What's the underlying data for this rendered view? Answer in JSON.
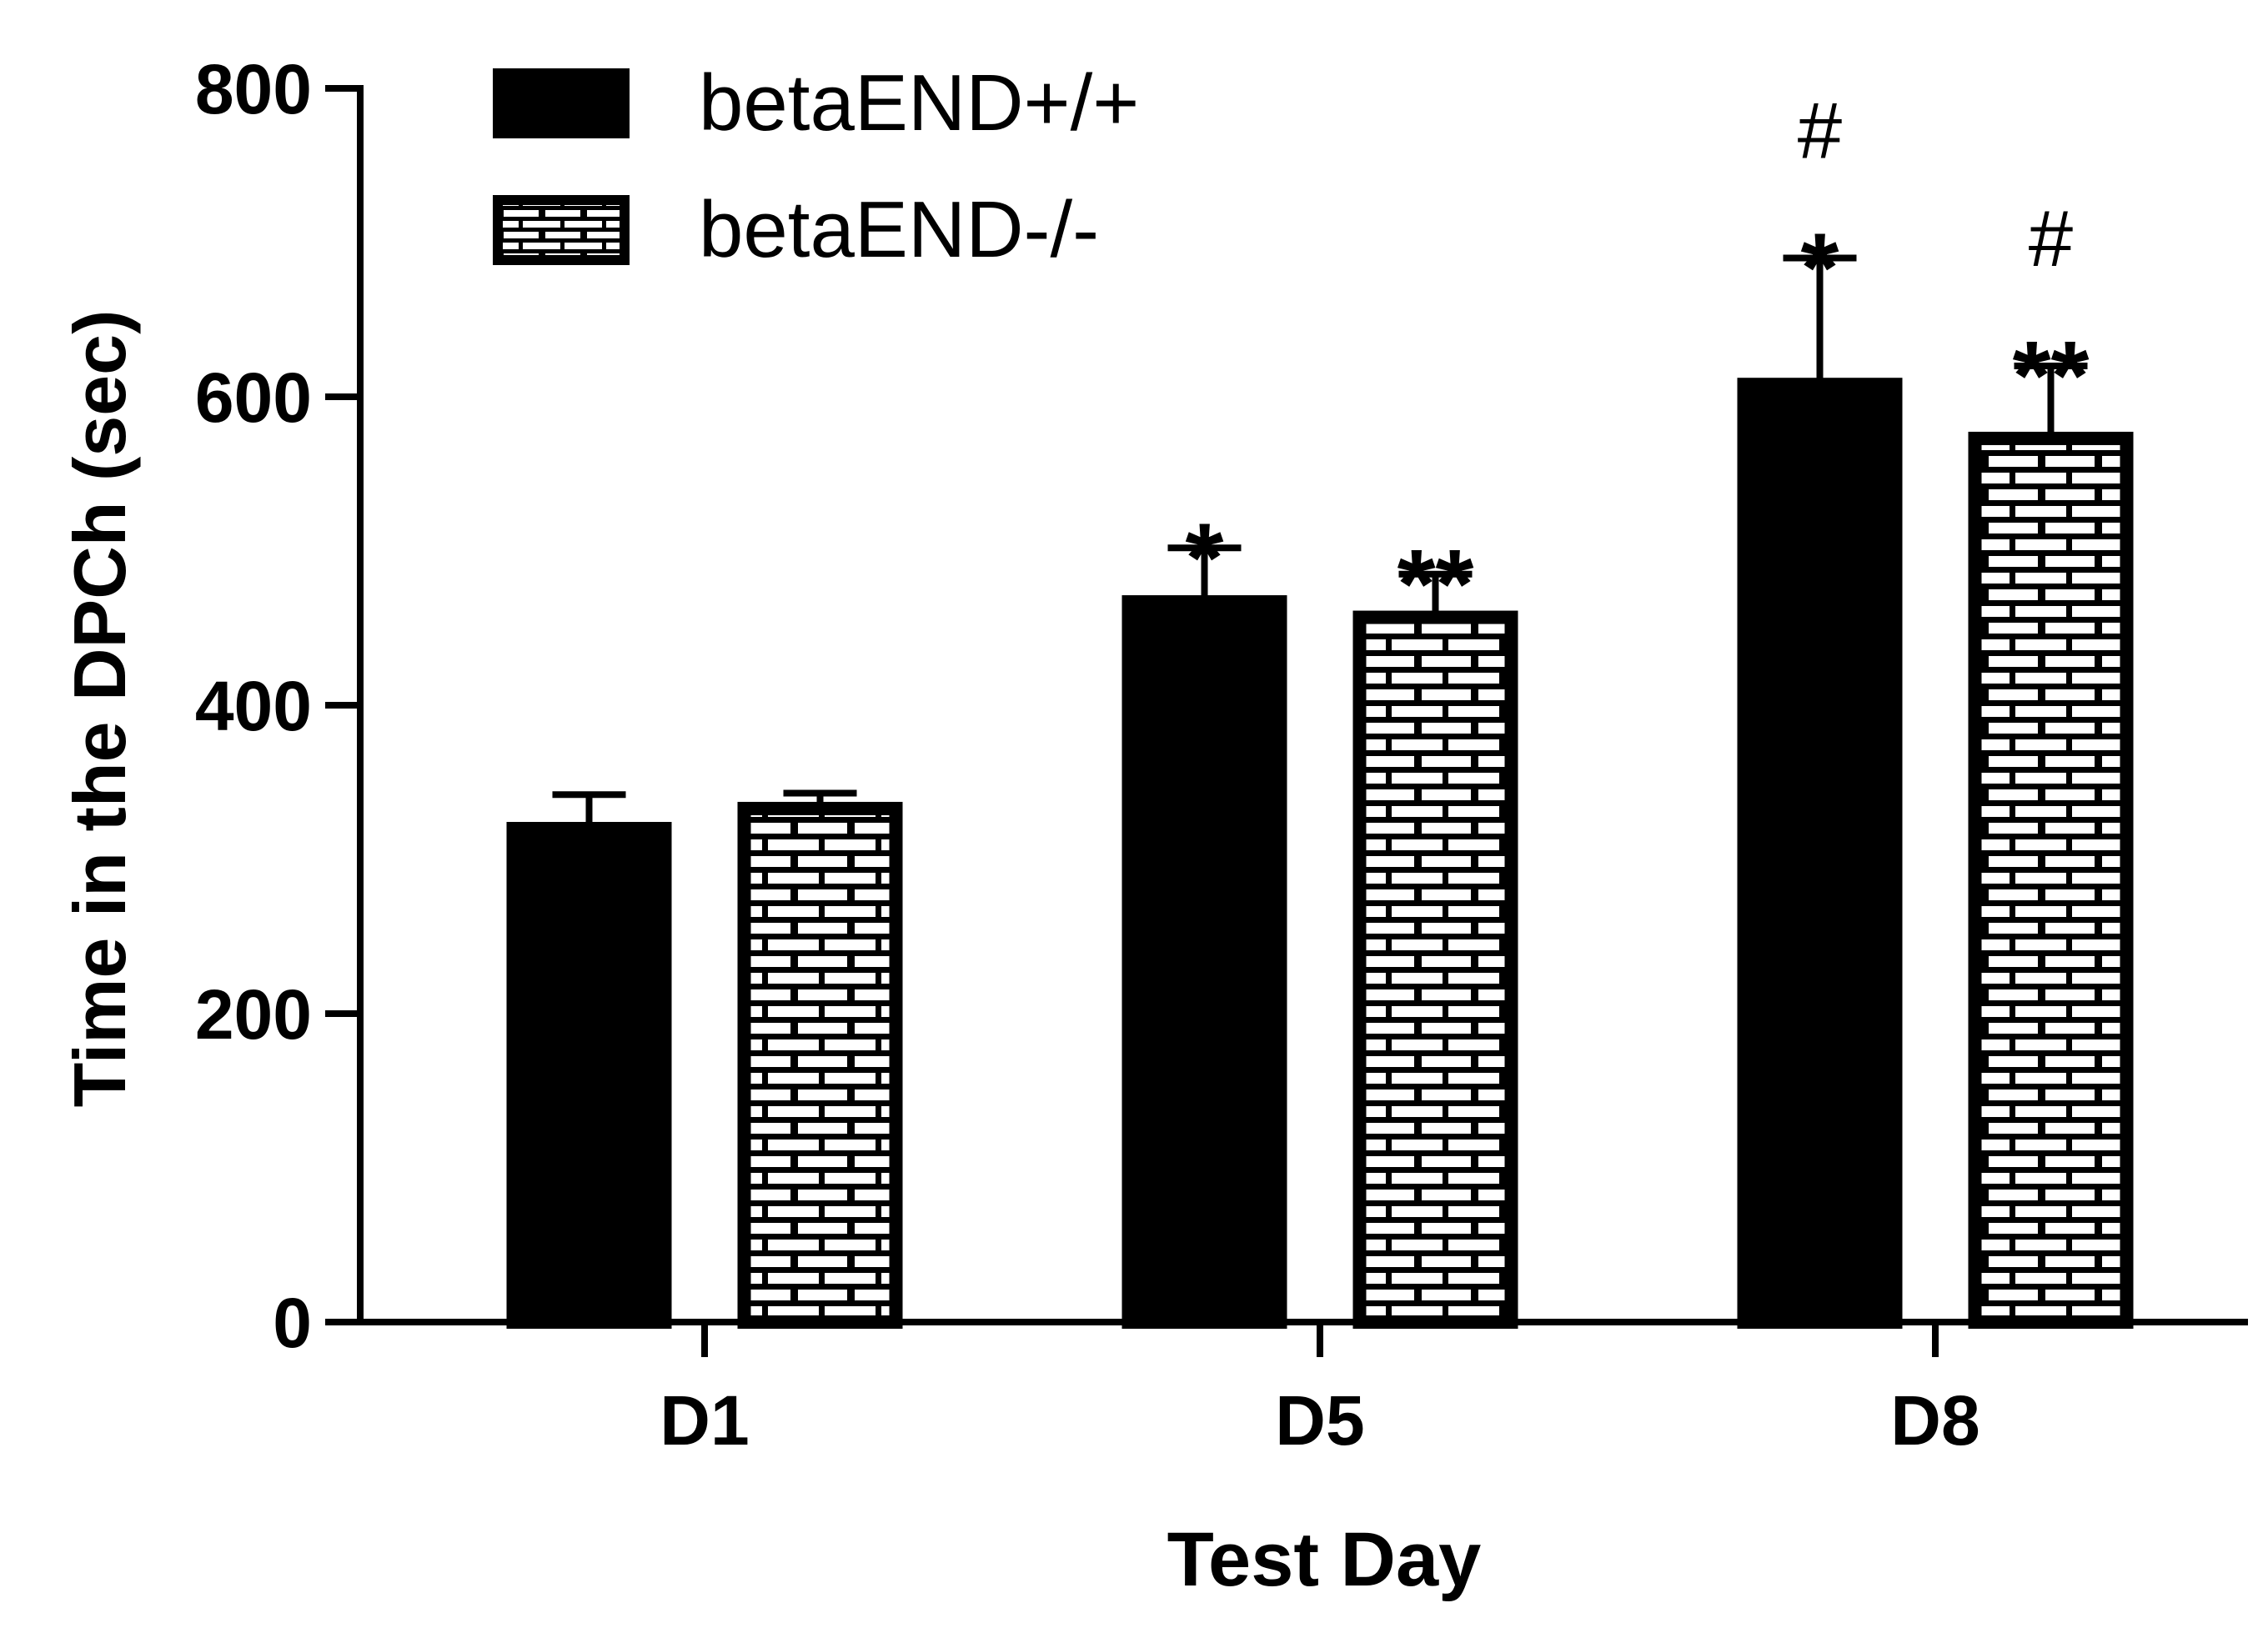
{
  "chart_data": {
    "type": "bar",
    "categories": [
      "D1",
      "D5",
      "D8"
    ],
    "series": [
      {
        "name": "betaEND+/+",
        "values": [
          320,
          467,
          608
        ],
        "errors": [
          22,
          35,
          82
        ],
        "fill": "#000000",
        "pattern": "solid"
      },
      {
        "name": "betaEND-/-",
        "values": [
          333,
          457,
          573
        ],
        "errors": [
          10,
          28,
          47
        ],
        "fill": "#ffffff",
        "pattern": "brick"
      }
    ],
    "annotations": [
      {
        "category": "D5",
        "series": 0,
        "lines": [
          "*"
        ]
      },
      {
        "category": "D5",
        "series": 1,
        "lines": [
          "**"
        ]
      },
      {
        "category": "D8",
        "series": 0,
        "lines": [
          "#",
          "*"
        ]
      },
      {
        "category": "D8",
        "series": 1,
        "lines": [
          "#",
          "**"
        ]
      }
    ],
    "xlabel": "Test Day",
    "ylabel": "Time in the DPCh (sec)",
    "ylim": [
      0,
      800
    ],
    "yticks": [
      "0",
      "200",
      "400",
      "600",
      "800"
    ],
    "grid": false,
    "legend_position": "top-left",
    "colors": {
      "axis": "#000000",
      "background": "#ffffff"
    }
  }
}
